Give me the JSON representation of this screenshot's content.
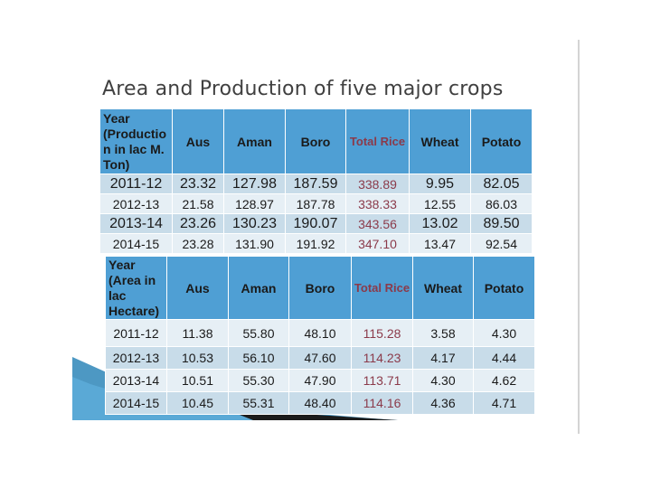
{
  "title": "Area and Production of five major crops",
  "production_table": {
    "headers": [
      "Year (Productio n in lac M. Ton)",
      "Aus",
      "Aman",
      "Boro",
      "Total Rice",
      "Wheat",
      "Potato"
    ],
    "rows": [
      [
        "2011-12",
        "23.32",
        "127.98",
        "187.59",
        "338.89",
        "9.95",
        "82.05"
      ],
      [
        "2012-13",
        "21.58",
        "128.97",
        "187.78",
        "338.33",
        "12.55",
        "86.03"
      ],
      [
        "2013-14",
        "23.26",
        "130.23",
        "190.07",
        "343.56",
        "13.02",
        "89.50"
      ],
      [
        "2014-15",
        "23.28",
        "131.90",
        "191.92",
        "347.10",
        "13.47",
        "92.54"
      ]
    ]
  },
  "area_table": {
    "headers": [
      "Year (Area in lac Hectare)",
      "Aus",
      "Aman",
      "Boro",
      "Total Rice",
      "Wheat",
      "Potato"
    ],
    "rows": [
      [
        "2011-12",
        "11.38",
        "55.80",
        "48.10",
        "115.28",
        "3.58",
        "4.30"
      ],
      [
        "2012-13",
        "10.53",
        "56.10",
        "47.60",
        "114.23",
        "4.17",
        "4.44"
      ],
      [
        "2013-14",
        "10.51",
        "55.30",
        "47.90",
        "113.71",
        "4.30",
        "4.62"
      ],
      [
        "2014-15",
        "10.45",
        "55.31",
        "48.40",
        "114.16",
        "4.36",
        "4.71"
      ]
    ]
  },
  "colors": {
    "header_bg": "#4f9fd4",
    "row_dark": "#c8dce9",
    "row_light": "#e6eff5",
    "rice_text": "#8b3a4a"
  }
}
